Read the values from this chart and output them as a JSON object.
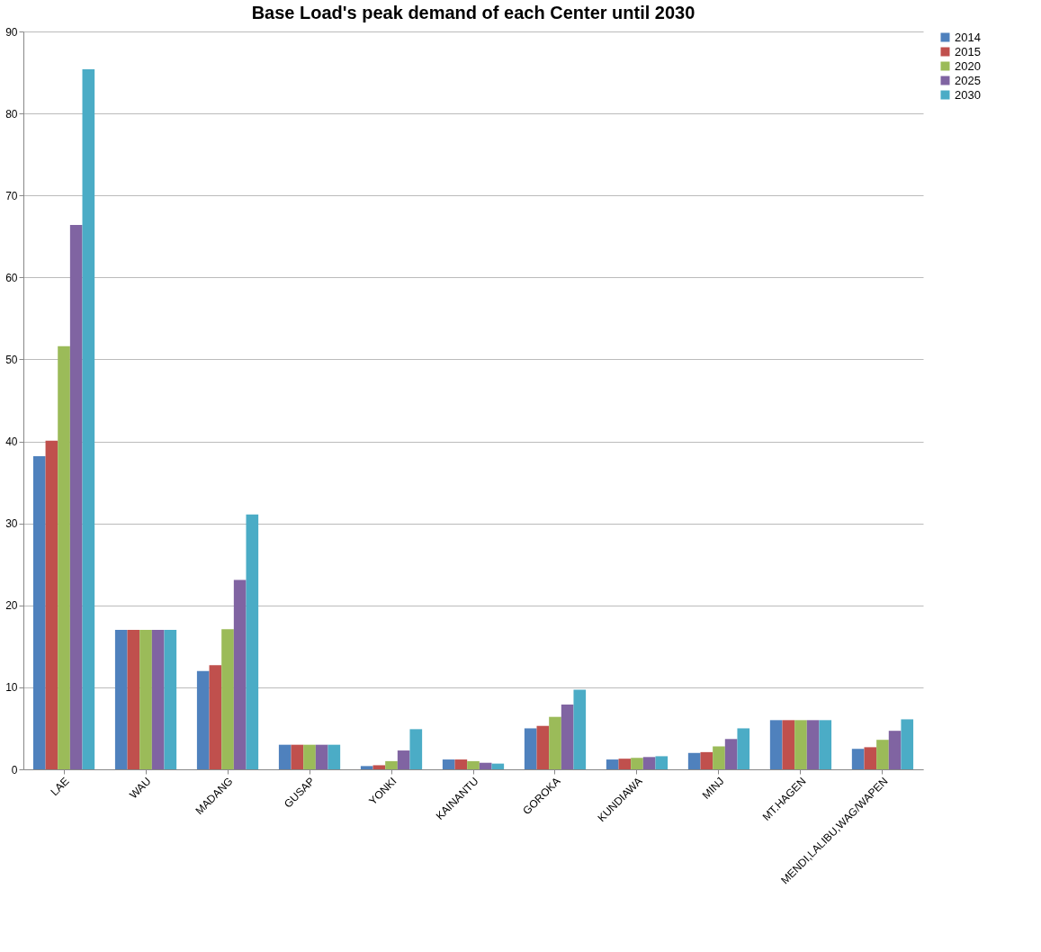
{
  "chart_data": {
    "type": "bar",
    "title": "Base Load's  peak demand of each Center  until  2030",
    "categories": [
      "LAE",
      "WAU",
      "MADANG",
      "GUSAP",
      "YONKI",
      "KAINANTU",
      "GOROKA",
      "KUNDIAWA",
      "MINJ",
      "MT.HAGEN",
      "MENDI,LALIBU,WAG/WAPEN"
    ],
    "series": [
      {
        "name": "2014",
        "color": "#4f81bd",
        "values": [
          38.2,
          17,
          12,
          3,
          0.4,
          1.2,
          5.0,
          1.2,
          2.0,
          6,
          2.5
        ]
      },
      {
        "name": "2015",
        "color": "#c0504d",
        "values": [
          40.1,
          17,
          12.7,
          3,
          0.5,
          1.2,
          5.3,
          1.3,
          2.1,
          6,
          2.7
        ]
      },
      {
        "name": "2020",
        "color": "#9bbb59",
        "values": [
          51.6,
          17,
          17.1,
          3,
          1.0,
          1.0,
          6.4,
          1.4,
          2.8,
          6,
          3.6
        ]
      },
      {
        "name": "2025",
        "color": "#8064a2",
        "values": [
          66.4,
          17,
          23.1,
          3,
          2.3,
          0.8,
          7.9,
          1.5,
          3.7,
          6,
          4.7
        ]
      },
      {
        "name": "2030",
        "color": "#4bacc6",
        "values": [
          85.4,
          17,
          31.1,
          3,
          4.9,
          0.7,
          9.7,
          1.6,
          5.0,
          6,
          6.1
        ]
      }
    ],
    "ylim": [
      0,
      90
    ],
    "yticks": [
      0,
      10,
      20,
      30,
      40,
      50,
      60,
      70,
      80,
      90
    ],
    "grid": "y",
    "legend": "right"
  }
}
